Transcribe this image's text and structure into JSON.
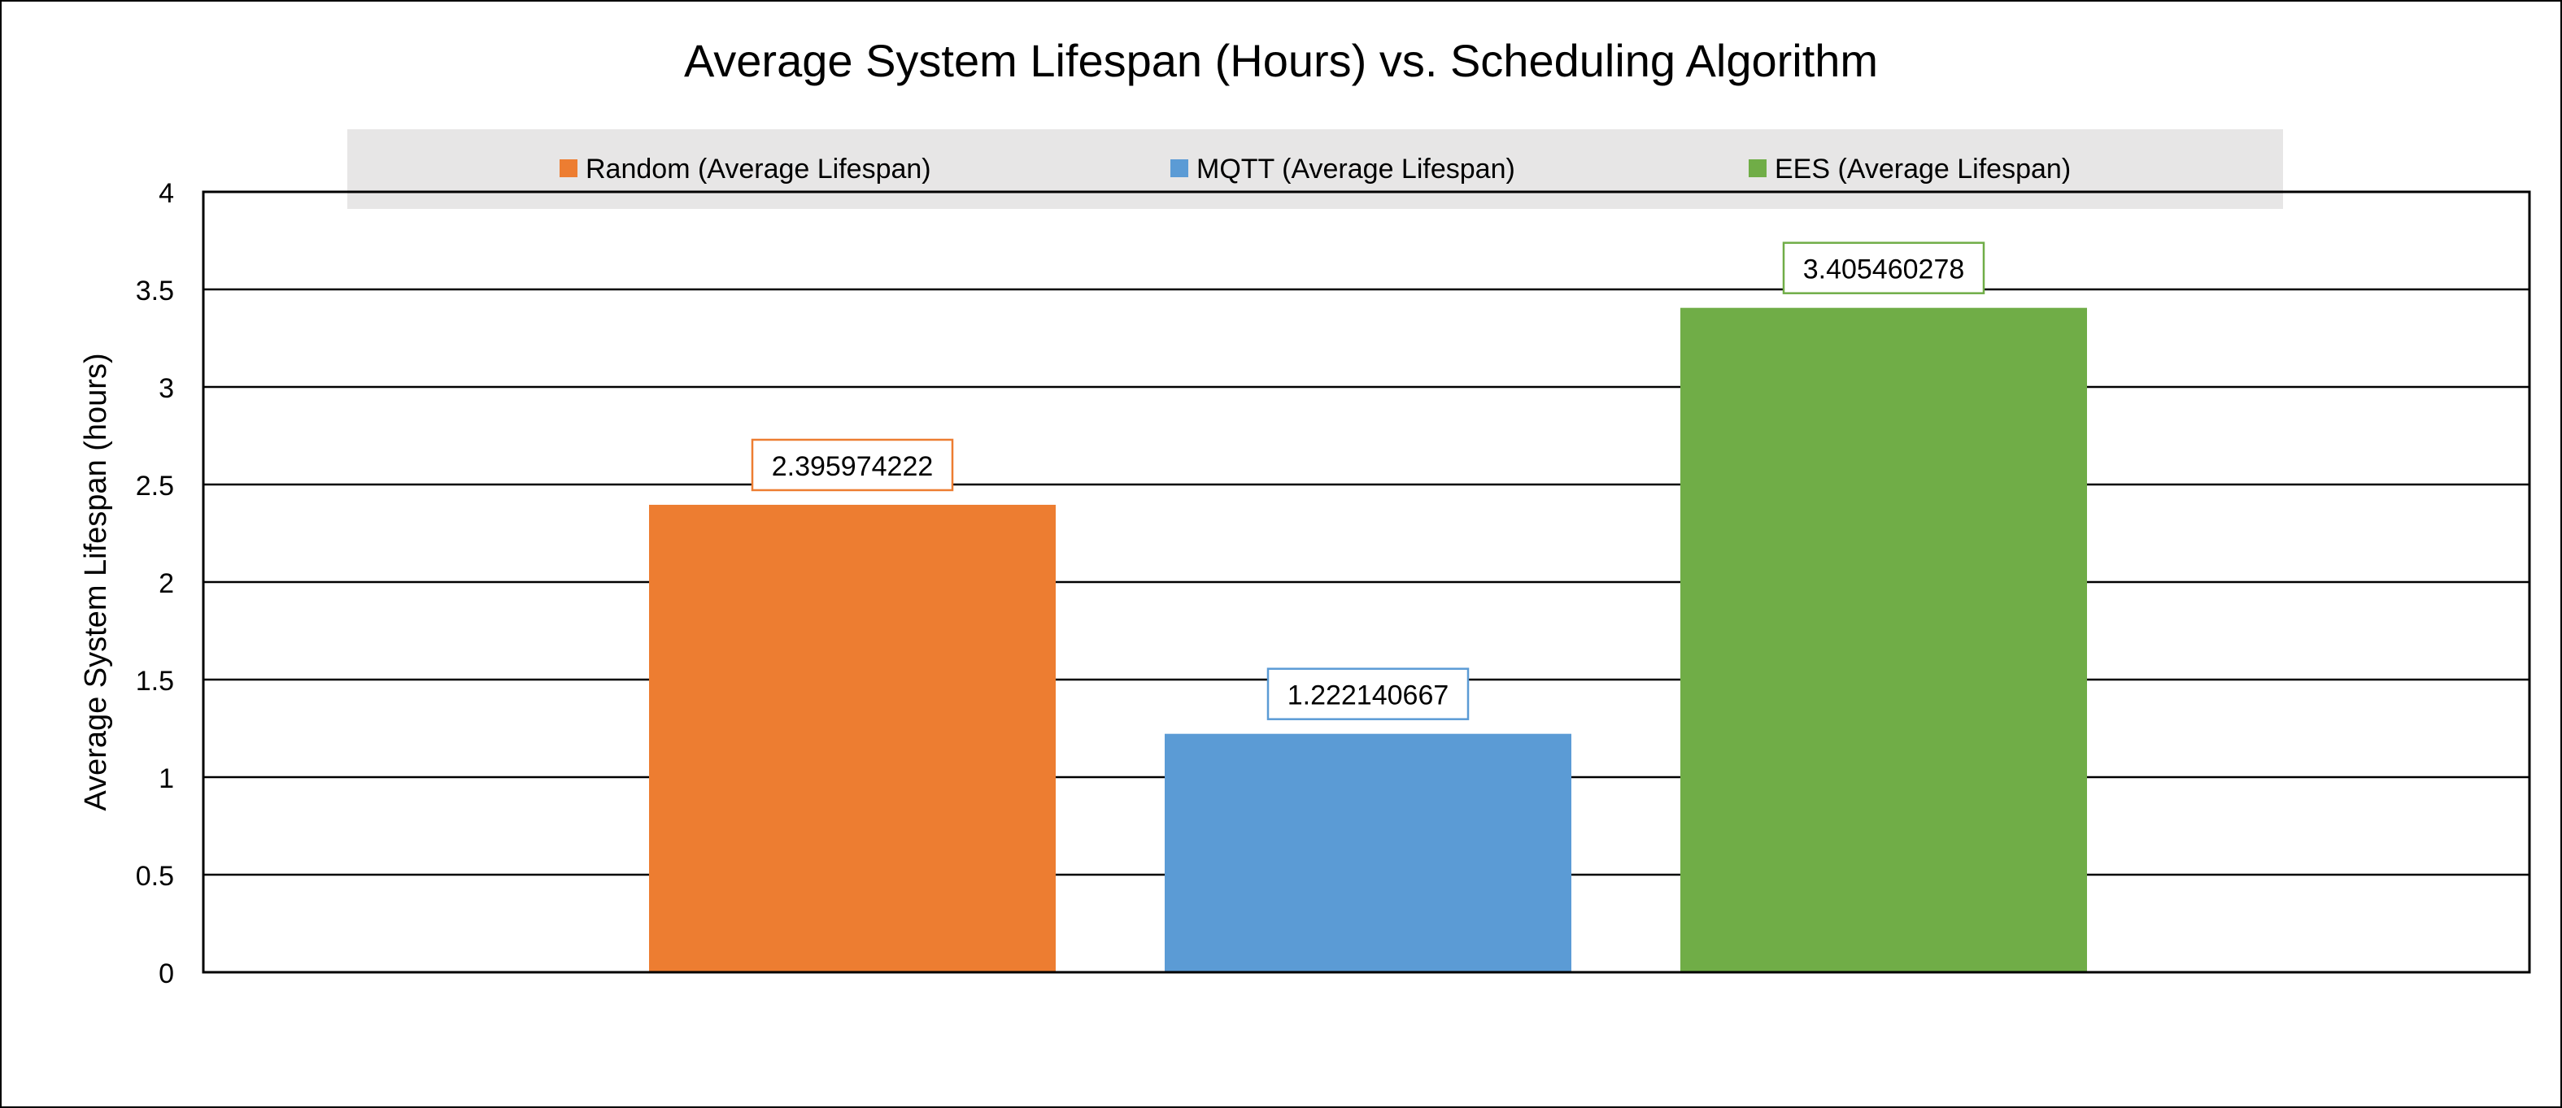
{
  "chart_data": {
    "type": "bar",
    "title": "Average System Lifespan (Hours) vs. Scheduling Algorithm",
    "xlabel": "",
    "ylabel": "Average System Lifespan (hours)",
    "ylim": [
      0,
      4
    ],
    "yticks": [
      "0",
      "0.5",
      "1",
      "1.5",
      "2",
      "2.5",
      "3",
      "3.5",
      "4"
    ],
    "grid": true,
    "legend_position": "top",
    "series": [
      {
        "name": "Random (Average Lifespan)",
        "value": 2.395974222,
        "label": "2.395974222",
        "color": "#ED7D31"
      },
      {
        "name": "MQTT (Average Lifespan)",
        "value": 1.222140667,
        "label": "1.222140667",
        "color": "#5B9BD5"
      },
      {
        "name": "EES (Average Lifespan)",
        "value": 3.405460278,
        "label": "3.405460278",
        "color": "#70AD47"
      }
    ]
  }
}
